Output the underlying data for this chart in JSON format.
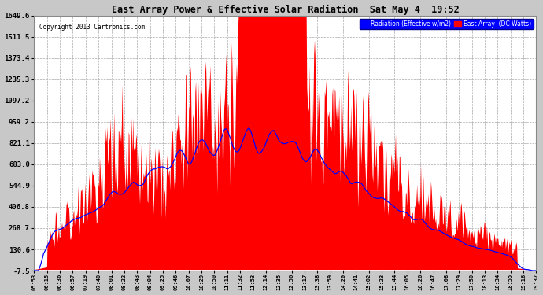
{
  "title": "East Array Power & Effective Solar Radiation  Sat May 4  19:52",
  "copyright": "Copyright 2013 Cartronics.com",
  "legend_radiation": "Radiation (Effective w/m2)",
  "legend_array": "East Array  (DC Watts)",
  "yticks": [
    -7.5,
    130.6,
    268.7,
    406.8,
    544.9,
    683.0,
    821.1,
    959.2,
    1097.2,
    1235.3,
    1373.4,
    1511.5,
    1649.6
  ],
  "xtick_labels": [
    "05:53",
    "06:15",
    "06:36",
    "06:57",
    "07:19",
    "07:40",
    "08:01",
    "08:22",
    "08:43",
    "09:04",
    "09:25",
    "09:46",
    "10:07",
    "10:29",
    "10:50",
    "11:11",
    "11:32",
    "11:53",
    "12:14",
    "12:35",
    "12:56",
    "13:17",
    "13:38",
    "13:59",
    "14:20",
    "14:41",
    "15:02",
    "15:23",
    "15:44",
    "16:05",
    "16:26",
    "16:47",
    "17:08",
    "17:29",
    "17:50",
    "18:13",
    "18:34",
    "18:55",
    "19:16",
    "19:37"
  ],
  "bg_color": "#c8c8c8",
  "plot_bg_color": "#ffffff",
  "red_color": "#ff0000",
  "blue_color": "#0000ff",
  "title_color": "#000000",
  "grid_color": "#aaaaaa",
  "ymin": -7.5,
  "ymax": 1649.6
}
